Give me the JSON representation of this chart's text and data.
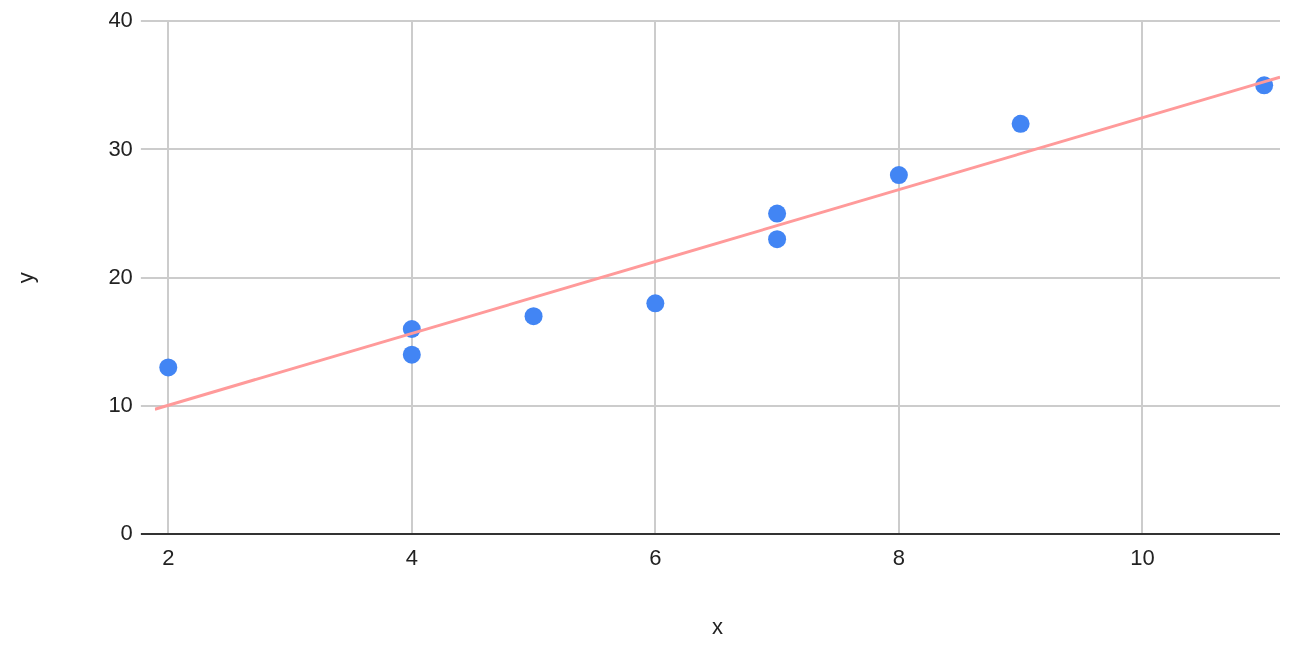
{
  "chart_data": {
    "type": "scatter",
    "xlabel": "x",
    "ylabel": "y",
    "xlim": [
      1.89,
      11.13
    ],
    "xticks": [
      2,
      4,
      6,
      8,
      10
    ],
    "ylim": [
      0,
      40
    ],
    "yticks": [
      0,
      10,
      20,
      30,
      40
    ],
    "grid": true,
    "legend": false,
    "series": [
      {
        "type": "line",
        "color": "#ff9a9a",
        "x": [
          1.89,
          11.13
        ],
        "values": [
          9.74,
          35.64
        ],
        "marker": "none",
        "line_style": "solid"
      },
      {
        "color": "#4285f4",
        "x": [
          2,
          4,
          4,
          5,
          6,
          7,
          7,
          8,
          9,
          11
        ],
        "values": [
          13,
          16,
          14,
          17,
          18,
          25,
          23,
          28,
          32,
          35
        ],
        "marker": "circle"
      }
    ]
  }
}
